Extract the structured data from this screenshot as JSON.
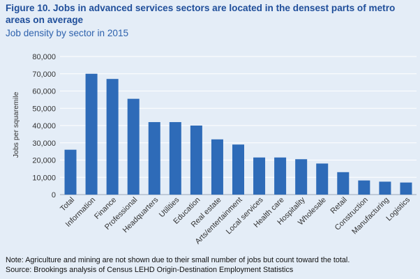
{
  "figure": {
    "title": "Figure 10. Jobs in advanced services sectors are located in the densest parts of metro areas on average",
    "subtitle": "Job density by sector in 2015",
    "note": "Note: Agriculture and mining are not shown due to their small number of jobs but count toward the total.",
    "source": "Source: Brookings analysis of Census LEHD Origin-Destination Employment Statistics"
  },
  "colors": {
    "background": "#e4edf7",
    "bar": "#2e6bb8",
    "title": "#1f4e9a",
    "axis_text": "#333333",
    "grid": "#ffffff"
  },
  "chart_data": {
    "type": "bar",
    "ylabel": "Jobs per squaremile",
    "ylim": [
      0,
      80000
    ],
    "yticks": [
      0,
      10000,
      20000,
      30000,
      40000,
      50000,
      60000,
      70000,
      80000
    ],
    "ytick_labels": [
      "0",
      "10,000",
      "20,000",
      "30,000",
      "40,000",
      "50,000",
      "60,000",
      "70,000",
      "80,000"
    ],
    "grid": true,
    "categories": [
      "Total",
      "Information",
      "Finance",
      "Professional",
      "Headquarters",
      "Utilities",
      "Education",
      "Real estate",
      "Arts/entertainment",
      "Local services",
      "Health care",
      "Hospitality",
      "Wholesale",
      "Retail",
      "Construction",
      "Manufacturing",
      "Logistics"
    ],
    "values": [
      26000,
      70000,
      67000,
      55500,
      42000,
      42000,
      40000,
      32000,
      29000,
      21500,
      21500,
      20500,
      18000,
      13000,
      8200,
      7500,
      7000
    ]
  }
}
